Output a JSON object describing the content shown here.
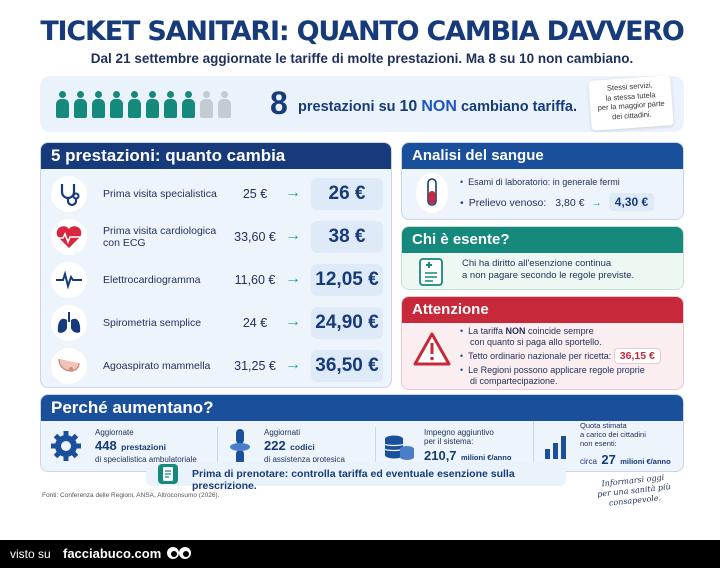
{
  "title": "TICKET SANITARI: QUANTO CAMBIA DAVVERO",
  "subtitle": "Dal 21 settembre aggiornate le tariffe di molte prestazioni. Ma 8 su 10 non cambiano.",
  "banner": {
    "number": "8",
    "text_a": "prestazioni su",
    "text_b": "10",
    "text_c": "NON",
    "text_d": "cambiano tariffa.",
    "note": [
      "Stessi servizi,",
      "la stessa tutela",
      "per la maggior parte",
      "dei cittadini."
    ],
    "people_total": 10,
    "people_colored": 8,
    "colors": {
      "colored": "#16897d",
      "gray": "#c4cbd2"
    }
  },
  "prestazioni": {
    "title": "5 prestazioni: quanto cambia",
    "items": [
      {
        "name": "Prima visita specialistica",
        "old": "25 €",
        "new": "26 €",
        "icon": "stethoscope-icon"
      },
      {
        "name": "Prima visita cardiologica con ECG",
        "old": "33,60 €",
        "new": "38 €",
        "icon": "heart-ecg-icon"
      },
      {
        "name": "Elettrocardiogramma",
        "old": "11,60 €",
        "new": "12,05 €",
        "icon": "ecg-wave-icon"
      },
      {
        "name": "Spirometria semplice",
        "old": "24 €",
        "new": "24,90 €",
        "icon": "lungs-icon"
      },
      {
        "name": "Agoaspirato mammella",
        "old": "31,25 €",
        "new": "36,50 €",
        "icon": "breast-icon"
      }
    ]
  },
  "sangue": {
    "title": "Analisi del sangue",
    "line1": "Esami di laboratorio: in generale fermi",
    "line2_label": "Prelievo venoso:",
    "line2_old": "3,80 €",
    "line2_new": "4,30 €"
  },
  "esente": {
    "title": "Chi è esente?",
    "text_1": "Chi ha diritto all'esenzione continua",
    "text_2": "a non pagare secondo le regole previste."
  },
  "attenzione": {
    "title": "Attenzione",
    "b1_a": "La tariffa",
    "b1_b": "NON",
    "b1_c": "coincide sempre",
    "b1_2": "con quanto si paga allo sportello.",
    "b2": "Tetto ordinario nazionale per ricetta:",
    "b2_value": "36,15 €",
    "b3_1": "Le Regioni possono applicare regole proprie",
    "b3_2": "di compartecipazione."
  },
  "perche": {
    "title": "Perché aumentano?",
    "stats": [
      {
        "top": "Aggiornate",
        "num": "448",
        "unit": "prestazioni",
        "bottom": "di specialistica ambulatoriale",
        "icon": "gear-icon"
      },
      {
        "top": "Aggiornati",
        "num": "222",
        "unit": "codici",
        "bottom": "di assistenza protesica",
        "icon": "bone-joint-icon"
      },
      {
        "top": "Impegno aggiuntivo",
        "top2": "per il sistema:",
        "num": "210,7",
        "unit": "milioni €/anno",
        "icon": "coins-icon"
      },
      {
        "top": "Quota stimata",
        "top2": "a carico dei cittadini",
        "top3": "non esenti:",
        "pre": "circa",
        "num": "27",
        "unit": "milioni €/anno",
        "icon": "bar-chart-icon"
      }
    ]
  },
  "cta": "Prima di prenotare: controlla tariffa ed eventuale esenzione sulla prescrizione.",
  "signature": [
    "Informarsi oggi",
    "per una sanità più consapevole."
  ],
  "sources": "Fonti: Conferenza delle Regioni, ANSA, Altroconsumo (2026).",
  "footer": {
    "visto": "visto su",
    "site": "facciabuco.com"
  },
  "colors": {
    "navy": "#173a7a",
    "teal": "#16897d",
    "blue": "#1a4f9c",
    "red": "#c7283a"
  }
}
